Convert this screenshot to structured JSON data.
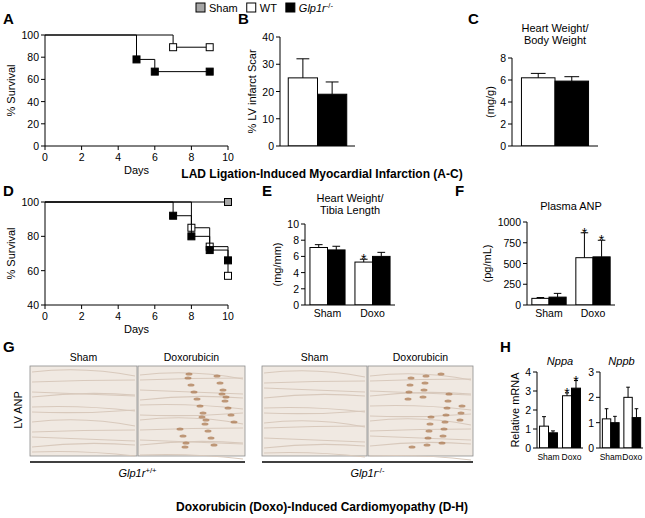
{
  "figure_legend": {
    "entries": [
      {
        "name": "Sham",
        "color": "#a6a6a6"
      },
      {
        "name": "WT",
        "color": "#ffffff"
      },
      {
        "name": "Glp1r-/-",
        "color": "#000000"
      }
    ]
  },
  "captions": [
    "LAD Ligation-Induced Myocardial Infarction (A-C)",
    "Doxorubicin (Doxo)-Induced Cardiomyopathy (D-H)"
  ],
  "image_panel": {
    "panel": "G",
    "ylabel": "LV ANP",
    "columns": [
      "Sham",
      "Doxorubicin",
      "Sham",
      "Doxorubicin"
    ],
    "groups": [
      "Glp1r+/+",
      "Glp1r-/-"
    ]
  },
  "chart_data": [
    {
      "type": "line",
      "panel": "A",
      "ylabel": "% Survival",
      "xlabel": "Days",
      "xlim": [
        0,
        10
      ],
      "xticks": [
        0,
        2,
        4,
        6,
        8,
        10
      ],
      "ylim": [
        0,
        100
      ],
      "yticks": [
        0,
        20,
        40,
        60,
        80,
        100
      ],
      "line_style": "step",
      "marker": "square",
      "series": [
        {
          "color": "#ffffff",
          "x": [
            0,
            7,
            9
          ],
          "values": [
            100,
            89,
            89
          ]
        },
        {
          "color": "#000000",
          "x": [
            0,
            5,
            6,
            9
          ],
          "values": [
            100,
            78,
            67,
            67
          ]
        }
      ]
    },
    {
      "type": "bar",
      "panel": "B",
      "ylabel": "% LV infarct Scar",
      "categories": [
        null
      ],
      "ylim": [
        0,
        40
      ],
      "yticks": [
        0,
        10,
        20,
        30,
        40
      ],
      "series": [
        {
          "color": "#ffffff",
          "values": [
            25
          ],
          "errors": [
            7
          ]
        },
        {
          "color": "#000000",
          "values": [
            19
          ],
          "errors": [
            4.5
          ]
        }
      ]
    },
    {
      "type": "bar",
      "panel": "C",
      "title": [
        "Heart Weight/",
        "Body Weight"
      ],
      "ylabel": "(mg/g)",
      "categories": [
        null
      ],
      "ylim": [
        0,
        8
      ],
      "yticks": [
        0,
        2,
        4,
        6,
        8
      ],
      "series": [
        {
          "color": "#ffffff",
          "values": [
            6.2
          ],
          "errors": [
            0.4
          ]
        },
        {
          "color": "#000000",
          "values": [
            5.9
          ],
          "errors": [
            0.4
          ]
        }
      ]
    },
    {
      "type": "line",
      "panel": "D",
      "ylabel": "% Survival",
      "xlabel": "Days",
      "xlim": [
        0,
        10
      ],
      "xticks": [
        0,
        2,
        4,
        6,
        8,
        10
      ],
      "ylim": [
        40,
        100
      ],
      "yticks": [
        40,
        60,
        80,
        100
      ],
      "line_style": "step",
      "marker": "square",
      "series": [
        {
          "color": "#a6a6a6",
          "x": [
            0,
            10
          ],
          "values": [
            100,
            100
          ]
        },
        {
          "color": "#ffffff",
          "x": [
            0,
            8,
            9,
            10
          ],
          "values": [
            100,
            85,
            74,
            57
          ]
        },
        {
          "color": "#000000",
          "x": [
            0,
            7,
            8,
            9,
            10
          ],
          "values": [
            100,
            92,
            80,
            72,
            66
          ]
        }
      ]
    },
    {
      "type": "bar",
      "panel": "E",
      "title": [
        "Heart Weight/",
        "Tibia Length"
      ],
      "ylabel": "(mg/mm)",
      "categories": [
        "Sham",
        "Doxo"
      ],
      "ylim": [
        0,
        10
      ],
      "yticks": [
        0,
        2,
        4,
        6,
        8,
        10
      ],
      "series": [
        {
          "color": "#ffffff",
          "values": [
            7.1,
            5.3
          ],
          "errors": [
            0.35,
            0.35
          ],
          "significance": [
            null,
            "*"
          ]
        },
        {
          "color": "#000000",
          "values": [
            6.8,
            6.0
          ],
          "errors": [
            0.45,
            0.5
          ]
        }
      ]
    },
    {
      "type": "bar",
      "panel": "F",
      "title": [
        "Plasma ANP"
      ],
      "ylabel": "(pg/mL)",
      "categories": [
        "Sham",
        "Doxo"
      ],
      "ylim": [
        0,
        1000
      ],
      "yticks": [
        0,
        250,
        500,
        750,
        1000
      ],
      "series": [
        {
          "color": "#ffffff",
          "values": [
            80,
            570
          ],
          "errors": [
            10,
            300
          ],
          "significance": [
            null,
            "*"
          ]
        },
        {
          "color": "#000000",
          "values": [
            95,
            580
          ],
          "errors": [
            45,
            200
          ],
          "significance": [
            null,
            "*"
          ]
        }
      ]
    },
    {
      "type": "bar",
      "panel": "H",
      "title": [
        "Nppa"
      ],
      "ylabel": "Relative mRNA",
      "categories": [
        "Sham",
        "Doxo"
      ],
      "ylim": [
        0,
        4
      ],
      "yticks": [
        0,
        1,
        2,
        3,
        4
      ],
      "series": [
        {
          "color": "#ffffff",
          "values": [
            1.15,
            2.75
          ],
          "errors": [
            0.5,
            0.15
          ],
          "significance": [
            null,
            "*"
          ]
        },
        {
          "color": "#000000",
          "values": [
            0.8,
            3.15
          ],
          "errors": [
            0.1,
            0.4
          ],
          "significance": [
            null,
            "*"
          ]
        }
      ]
    },
    {
      "type": "bar",
      "title": [
        "Nppb"
      ],
      "categories": [
        "Sham",
        "Doxo"
      ],
      "ylim": [
        0,
        3
      ],
      "yticks": [
        0,
        1,
        2,
        3
      ],
      "series": [
        {
          "color": "#ffffff",
          "values": [
            1.15,
            2.0
          ],
          "errors": [
            0.4,
            0.4
          ]
        },
        {
          "color": "#000000",
          "values": [
            1.0,
            1.2
          ],
          "errors": [
            0.25,
            0.35
          ]
        }
      ]
    }
  ]
}
